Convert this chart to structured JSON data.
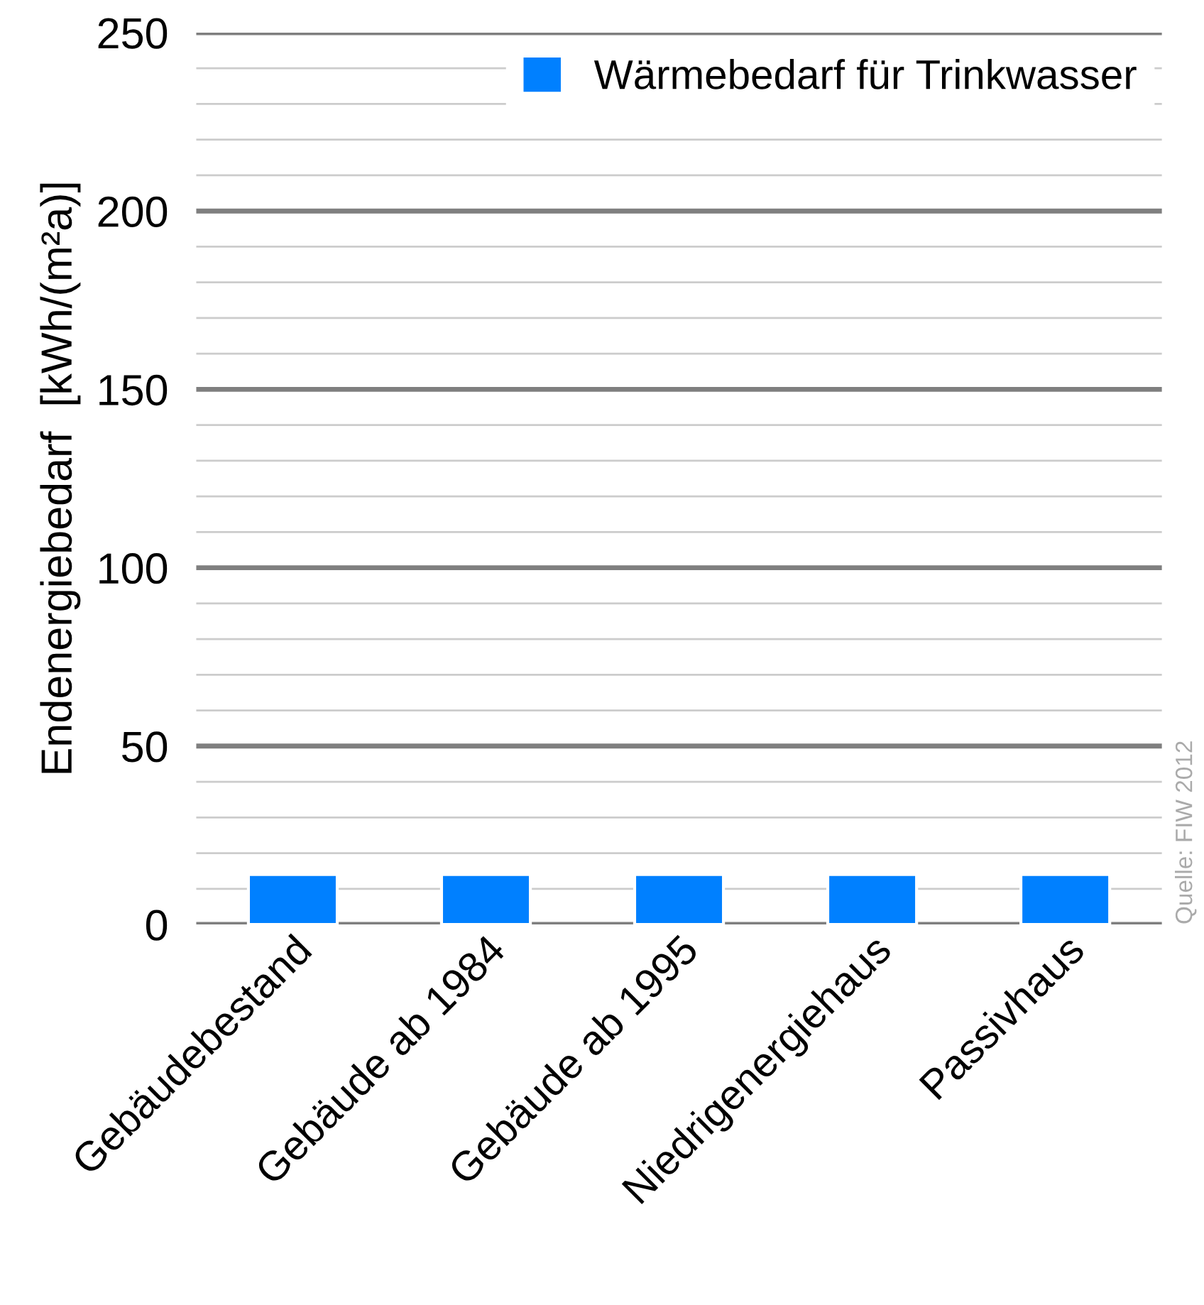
{
  "chart_data": {
    "type": "bar",
    "ylabel": "Endenergiebedarf  [kWh/(m²a)]",
    "categories": [
      "Gebäudebestand",
      "Gebäude ab 1984",
      "Gebäude ab 1995",
      "Niedrigenergiehaus",
      "Passivhaus"
    ],
    "series": [
      {
        "name": "Wärmebedarf für Trinkwasser",
        "color": "#0080ff",
        "values": [
          14,
          14,
          14,
          14,
          14
        ]
      }
    ],
    "ylim": [
      0,
      250
    ],
    "yticks": [
      0,
      {
        "value": 10,
        "label": null
      },
      {
        "value": 20,
        "label": null
      },
      {
        "value": 30,
        "label": null
      },
      {
        "value": 40,
        "label": null
      },
      50,
      {
        "value": 60,
        "label": null
      },
      {
        "value": 70,
        "label": null
      },
      {
        "value": 80,
        "label": null
      },
      {
        "value": 90,
        "label": null
      },
      100,
      {
        "value": 110,
        "label": null
      },
      {
        "value": 120,
        "label": null
      },
      {
        "value": 130,
        "label": null
      },
      {
        "value": 140,
        "label": null
      },
      150,
      {
        "value": 160,
        "label": null
      },
      {
        "value": 170,
        "label": null
      },
      {
        "value": 180,
        "label": null
      },
      {
        "value": 190,
        "label": null
      },
      200,
      {
        "value": 210,
        "label": null
      },
      {
        "value": 220,
        "label": null
      },
      {
        "value": 230,
        "label": null
      },
      {
        "value": 240,
        "label": null
      },
      250
    ],
    "grid": "y",
    "legend": "top right",
    "annotations": [
      "Quelle: FIW 2012"
    ]
  }
}
